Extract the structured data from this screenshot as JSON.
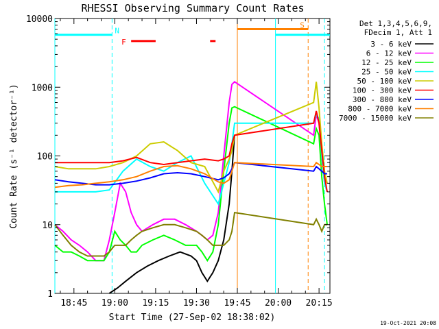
{
  "chart_data": {
    "type": "line",
    "title": "RHESSI Observing Summary Count Rates",
    "xlabel": "Start Time (27-Sep-02 18:38:02)",
    "ylabel": "Count Rate (s⁻¹ detector⁻¹)",
    "yscale": "log",
    "ylim": [
      1,
      10000
    ],
    "xlim_minutes": [
      0,
      101
    ],
    "x_ticks": [
      {
        "label": "18:45",
        "minute": 7
      },
      {
        "label": "19:00",
        "minute": 22
      },
      {
        "label": "19:15",
        "minute": 37
      },
      {
        "label": "19:30",
        "minute": 52
      },
      {
        "label": "19:45",
        "minute": 67
      },
      {
        "label": "20:00",
        "minute": 82
      },
      {
        "label": "20:15",
        "minute": 97
      }
    ],
    "y_ticks": [
      "1",
      "10",
      "100",
      "1000",
      "10000"
    ],
    "y_tick_values": [
      1,
      10,
      100,
      1000,
      10000
    ],
    "legend_header": [
      "Det 1,3,4,5,6,9,",
      "FDecim 1, Att 1"
    ],
    "series": [
      {
        "name": "3 - 6 keV",
        "color": "#000000",
        "x": [
          20,
          23,
          26,
          30,
          34,
          38,
          42,
          46,
          50,
          52,
          54,
          56,
          58,
          60,
          62,
          64,
          65,
          66
        ],
        "y": [
          1,
          1.2,
          1.5,
          2,
          2.5,
          3,
          3.5,
          4,
          3.5,
          3,
          2,
          1.5,
          2,
          3,
          6,
          20,
          60,
          200
        ]
      },
      {
        "name": "6 - 12 keV",
        "color": "#ff00ff",
        "x": [
          0,
          3,
          6,
          9,
          12,
          15,
          18,
          20,
          22,
          24,
          26,
          28,
          30,
          32,
          36,
          40,
          44,
          48,
          52,
          54,
          56,
          58,
          60,
          62,
          64,
          65,
          66,
          95,
          96,
          97,
          98,
          99,
          100
        ],
        "y": [
          10,
          8,
          6,
          5,
          4,
          3,
          3,
          6,
          15,
          40,
          30,
          15,
          10,
          8,
          10,
          12,
          12,
          10,
          8,
          7,
          6,
          7,
          15,
          100,
          600,
          1100,
          1200,
          200,
          400,
          300,
          100,
          40,
          30
        ]
      },
      {
        "name": "12 - 25 keV",
        "color": "#00ff00",
        "x": [
          0,
          3,
          6,
          9,
          12,
          15,
          18,
          20,
          22,
          24,
          26,
          28,
          30,
          32,
          36,
          40,
          44,
          48,
          52,
          54,
          56,
          58,
          60,
          62,
          64,
          65,
          66,
          95,
          96,
          97,
          98,
          99,
          100
        ],
        "y": [
          5,
          4,
          4,
          3.5,
          3,
          3,
          3,
          4,
          8,
          6,
          5,
          4,
          4,
          5,
          6,
          7,
          6,
          5,
          5,
          4,
          3,
          4,
          10,
          60,
          300,
          500,
          520,
          150,
          250,
          200,
          50,
          20,
          10
        ]
      },
      {
        "name": "25 - 50 keV",
        "color": "#00ffff",
        "x": [
          0,
          5,
          10,
          15,
          20,
          25,
          30,
          35,
          40,
          45,
          50,
          55,
          60,
          62,
          64,
          65,
          66,
          95,
          96,
          97,
          98,
          99,
          100
        ],
        "y": [
          30,
          30,
          30,
          30,
          32,
          60,
          90,
          70,
          60,
          80,
          100,
          40,
          20,
          40,
          80,
          150,
          300,
          300,
          400,
          350,
          100,
          40,
          30
        ]
      },
      {
        "name": "50 - 100 keV",
        "color": "#cccc00",
        "x": [
          0,
          5,
          10,
          15,
          20,
          25,
          30,
          35,
          40,
          45,
          50,
          55,
          60,
          62,
          64,
          65,
          66,
          95,
          96,
          97,
          98,
          99,
          100
        ],
        "y": [
          70,
          65,
          65,
          65,
          70,
          80,
          100,
          150,
          160,
          120,
          80,
          70,
          30,
          60,
          90,
          120,
          200,
          600,
          1200,
          500,
          150,
          60,
          40
        ]
      },
      {
        "name": "100 - 300 keV",
        "color": "#ff0000",
        "x": [
          0,
          5,
          10,
          15,
          20,
          25,
          30,
          35,
          40,
          45,
          50,
          55,
          60,
          62,
          64,
          65,
          66,
          95,
          96,
          97,
          98,
          99,
          100
        ],
        "y": [
          80,
          80,
          80,
          80,
          80,
          85,
          95,
          80,
          75,
          80,
          85,
          90,
          85,
          90,
          100,
          150,
          200,
          300,
          450,
          300,
          120,
          50,
          30
        ]
      },
      {
        "name": "300 - 800 keV",
        "color": "#0000ff",
        "x": [
          0,
          5,
          10,
          15,
          20,
          25,
          30,
          35,
          40,
          45,
          50,
          55,
          60,
          62,
          64,
          65,
          66,
          95,
          96,
          97,
          98,
          99,
          100
        ],
        "y": [
          45,
          42,
          40,
          38,
          38,
          40,
          43,
          48,
          55,
          57,
          55,
          50,
          45,
          48,
          55,
          65,
          80,
          60,
          70,
          65,
          60,
          55,
          55
        ]
      },
      {
        "name": "800 - 7000 keV",
        "color": "#ff8000",
        "x": [
          0,
          5,
          10,
          15,
          20,
          25,
          30,
          35,
          40,
          45,
          50,
          55,
          60,
          62,
          64,
          65,
          66,
          95,
          96,
          97,
          98,
          99,
          100
        ],
        "y": [
          35,
          37,
          38,
          40,
          42,
          45,
          50,
          60,
          70,
          72,
          65,
          55,
          42,
          40,
          45,
          60,
          80,
          70,
          80,
          75,
          70,
          70,
          70
        ]
      },
      {
        "name": "7000 - 15000 keV",
        "color": "#808000",
        "x": [
          0,
          3,
          6,
          9,
          12,
          15,
          18,
          20,
          22,
          24,
          26,
          28,
          30,
          32,
          36,
          40,
          44,
          48,
          52,
          54,
          56,
          58,
          60,
          62,
          64,
          65,
          66,
          95,
          96,
          97,
          98,
          99,
          100
        ],
        "y": [
          10,
          7,
          5,
          4,
          3.5,
          3.5,
          3.5,
          4,
          5,
          5,
          5,
          6,
          7,
          8,
          9,
          10,
          10,
          9,
          8,
          7,
          6,
          5,
          5,
          5,
          6,
          8,
          15,
          10,
          12,
          10,
          8,
          10,
          10
        ]
      }
    ],
    "observing_flags": [
      {
        "label": "N",
        "color": "#00ffff",
        "value": 5800,
        "segments": [
          [
            0,
            21
          ],
          [
            81,
            101
          ]
        ]
      },
      {
        "label": "F",
        "color": "#ff0000",
        "value": 4700,
        "segments": [
          [
            28,
            37
          ],
          [
            57,
            59
          ]
        ]
      },
      {
        "label": "S",
        "color": "#ff8000",
        "value": 7000,
        "segments": [
          [
            67,
            93
          ]
        ]
      }
    ],
    "interval_lines": [
      {
        "minute": 0,
        "color": "#00ffff",
        "style": "solid"
      },
      {
        "minute": 21,
        "color": "#00ffff",
        "style": "dashed"
      },
      {
        "minute": 67,
        "color": "#ff8000",
        "style": "solid"
      },
      {
        "minute": 81,
        "color": "#00ffff",
        "style": "solid"
      },
      {
        "minute": 93,
        "color": "#ff8000",
        "style": "dashed"
      },
      {
        "minute": 99,
        "color": "#00ffff",
        "style": "dashed"
      }
    ]
  },
  "footer": {
    "timestamp": "19-Oct-2021 20:08"
  }
}
